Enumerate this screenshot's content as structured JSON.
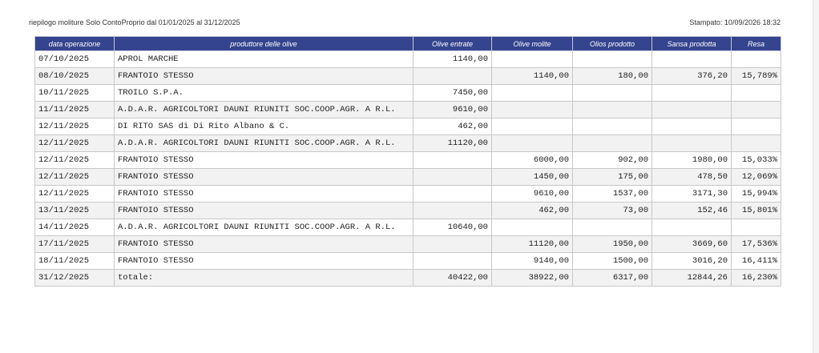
{
  "header": {
    "title": "riepilogo moliture Solo ContoProprio dal 01/01/2025 al 31/12/2025",
    "printed": "Stampato: 10/09/2026 18:32"
  },
  "table": {
    "columns": [
      "data operazione",
      "produttore delle olive",
      "Olive entrate",
      "Olive molite",
      "Olios prodotto",
      "Sansa prodotta",
      "Resa"
    ],
    "rows": [
      [
        "07/10/2025",
        "APROL MARCHE",
        "1140,00",
        null,
        null,
        null,
        null
      ],
      [
        "08/10/2025",
        "FRANTOIO STESSO",
        null,
        "1140,00",
        "180,00",
        "376,20",
        "15,789%"
      ],
      [
        "10/11/2025",
        "TROILO S.P.A.",
        "7450,00",
        null,
        null,
        null,
        null
      ],
      [
        "11/11/2025",
        "A.D.A.R. AGRICOLTORI DAUNI RIUNITI SOC.COOP.AGR. A R.L.",
        "9610,00",
        null,
        null,
        null,
        null
      ],
      [
        "12/11/2025",
        "DI RITO SAS di Di Rito Albano & C.",
        "462,00",
        null,
        null,
        null,
        null
      ],
      [
        "12/11/2025",
        "A.D.A.R. AGRICOLTORI DAUNI RIUNITI SOC.COOP.AGR. A R.L.",
        "11120,00",
        null,
        null,
        null,
        null
      ],
      [
        "12/11/2025",
        "FRANTOIO STESSO",
        null,
        "6000,00",
        "902,00",
        "1980,00",
        "15,033%"
      ],
      [
        "12/11/2025",
        "FRANTOIO STESSO",
        null,
        "1450,00",
        "175,00",
        "478,50",
        "12,069%"
      ],
      [
        "12/11/2025",
        "FRANTOIO STESSO",
        null,
        "9610,00",
        "1537,00",
        "3171,30",
        "15,994%"
      ],
      [
        "13/11/2025",
        "FRANTOIO STESSO",
        null,
        "462,00",
        "73,00",
        "152,46",
        "15,801%"
      ],
      [
        "14/11/2025",
        "A.D.A.R. AGRICOLTORI DAUNI RIUNITI SOC.COOP.AGR. A R.L.",
        "10640,00",
        null,
        null,
        null,
        null
      ],
      [
        "17/11/2025",
        "FRANTOIO STESSO",
        null,
        "11120,00",
        "1950,00",
        "3669,60",
        "17,536%"
      ],
      [
        "18/11/2025",
        "FRANTOIO STESSO",
        null,
        "9140,00",
        "1500,00",
        "3016,20",
        "16,411%"
      ],
      [
        "31/12/2025",
        "totale:",
        "40422,00",
        "38922,00",
        "6317,00",
        "12844,26",
        "16,230%"
      ]
    ]
  }
}
